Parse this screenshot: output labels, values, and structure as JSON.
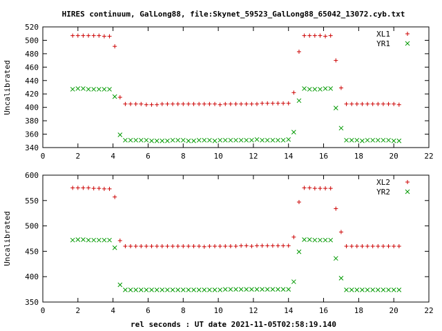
{
  "chart_data": [
    {
      "type": "scatter",
      "title": "HIRES continuum, GalLong88, file:Skynet_59523_GalLong88_65042_13072.cyb.txt",
      "ylabel": "Uncalibrated",
      "xlabel": "",
      "xlim": [
        0,
        22
      ],
      "ylim": [
        340,
        520
      ],
      "xticks": [
        0,
        2,
        4,
        6,
        8,
        10,
        12,
        14,
        16,
        18,
        20,
        22
      ],
      "yticks": [
        340,
        360,
        380,
        400,
        420,
        440,
        460,
        480,
        500,
        520
      ],
      "legend": "top-right",
      "grid": false,
      "series": [
        {
          "name": "XL1",
          "marker": "plus",
          "color": "#cc0000",
          "x": [
            1.7,
            2.0,
            2.3,
            2.6,
            2.9,
            3.2,
            3.5,
            3.8,
            4.1,
            4.4,
            4.7,
            5.0,
            5.3,
            5.6,
            5.9,
            6.2,
            6.5,
            6.8,
            7.1,
            7.4,
            7.7,
            8.0,
            8.3,
            8.6,
            8.9,
            9.2,
            9.5,
            9.8,
            10.1,
            10.4,
            10.7,
            11.0,
            11.3,
            11.6,
            11.9,
            12.2,
            12.5,
            12.8,
            13.1,
            13.4,
            13.7,
            14.0,
            14.3,
            14.6,
            14.9,
            15.2,
            15.5,
            15.8,
            16.1,
            16.4,
            16.7,
            17.0,
            17.3,
            17.6,
            17.9,
            18.2,
            18.5,
            18.8,
            19.1,
            19.4,
            19.7,
            20.0,
            20.3
          ],
          "y": [
            507,
            507,
            507,
            507,
            507,
            507,
            506,
            506,
            491,
            415,
            405,
            405,
            405,
            405,
            404,
            404,
            404,
            405,
            405,
            405,
            405,
            405,
            405,
            405,
            405,
            405,
            405,
            405,
            404,
            405,
            405,
            405,
            405,
            405,
            405,
            405,
            406,
            406,
            406,
            406,
            406,
            406,
            422,
            483,
            507,
            507,
            507,
            507,
            506,
            507,
            470,
            429,
            405,
            405,
            405,
            405,
            405,
            405,
            405,
            405,
            405,
            405,
            404
          ]
        },
        {
          "name": "YR1",
          "marker": "cross",
          "color": "#009900",
          "x": [
            1.7,
            2.0,
            2.3,
            2.6,
            2.9,
            3.2,
            3.5,
            3.8,
            4.1,
            4.4,
            4.7,
            5.0,
            5.3,
            5.6,
            5.9,
            6.2,
            6.5,
            6.8,
            7.1,
            7.4,
            7.7,
            8.0,
            8.3,
            8.6,
            8.9,
            9.2,
            9.5,
            9.8,
            10.1,
            10.4,
            10.7,
            11.0,
            11.3,
            11.6,
            11.9,
            12.2,
            12.5,
            12.8,
            13.1,
            13.4,
            13.7,
            14.0,
            14.3,
            14.6,
            14.9,
            15.2,
            15.5,
            15.8,
            16.1,
            16.4,
            16.7,
            17.0,
            17.3,
            17.6,
            17.9,
            18.2,
            18.5,
            18.8,
            19.1,
            19.4,
            19.7,
            20.0,
            20.3
          ],
          "y": [
            427,
            428,
            428,
            427,
            427,
            427,
            427,
            427,
            416,
            359,
            351,
            351,
            351,
            351,
            351,
            350,
            350,
            350,
            350,
            351,
            351,
            351,
            350,
            350,
            351,
            351,
            351,
            350,
            351,
            351,
            351,
            351,
            351,
            351,
            351,
            352,
            351,
            351,
            351,
            351,
            351,
            352,
            363,
            410,
            428,
            427,
            427,
            427,
            428,
            428,
            399,
            369,
            351,
            351,
            351,
            350,
            351,
            351,
            351,
            351,
            351,
            350,
            350
          ]
        }
      ]
    },
    {
      "type": "scatter",
      "title": "",
      "ylabel": "Uncalibrated",
      "xlabel": "rel seconds : UT date 2021-11-05T02:58:19.140",
      "xlim": [
        0,
        22
      ],
      "ylim": [
        350,
        600
      ],
      "xticks": [
        0,
        2,
        4,
        6,
        8,
        10,
        12,
        14,
        16,
        18,
        20,
        22
      ],
      "yticks": [
        350,
        400,
        450,
        500,
        550,
        600
      ],
      "legend": "top-right",
      "grid": false,
      "series": [
        {
          "name": "XL2",
          "marker": "plus",
          "color": "#cc0000",
          "x": [
            1.7,
            2.0,
            2.3,
            2.6,
            2.9,
            3.2,
            3.5,
            3.8,
            4.1,
            4.4,
            4.7,
            5.0,
            5.3,
            5.6,
            5.9,
            6.2,
            6.5,
            6.8,
            7.1,
            7.4,
            7.7,
            8.0,
            8.3,
            8.6,
            8.9,
            9.2,
            9.5,
            9.8,
            10.1,
            10.4,
            10.7,
            11.0,
            11.3,
            11.6,
            11.9,
            12.2,
            12.5,
            12.8,
            13.1,
            13.4,
            13.7,
            14.0,
            14.3,
            14.6,
            14.9,
            15.2,
            15.5,
            15.8,
            16.1,
            16.4,
            16.7,
            17.0,
            17.3,
            17.6,
            17.9,
            18.2,
            18.5,
            18.8,
            19.1,
            19.4,
            19.7,
            20.0,
            20.3
          ],
          "y": [
            575,
            575,
            575,
            575,
            574,
            574,
            573,
            573,
            557,
            471,
            460,
            460,
            460,
            460,
            460,
            460,
            460,
            460,
            460,
            460,
            460,
            460,
            460,
            460,
            460,
            459,
            460,
            460,
            460,
            460,
            460,
            460,
            461,
            461,
            460,
            461,
            461,
            461,
            461,
            461,
            461,
            461,
            478,
            547,
            575,
            575,
            574,
            574,
            574,
            574,
            534,
            488,
            460,
            460,
            460,
            460,
            460,
            460,
            460,
            460,
            460,
            460,
            460
          ]
        },
        {
          "name": "YR2",
          "marker": "cross",
          "color": "#009900",
          "x": [
            1.7,
            2.0,
            2.3,
            2.6,
            2.9,
            3.2,
            3.5,
            3.8,
            4.1,
            4.4,
            4.7,
            5.0,
            5.3,
            5.6,
            5.9,
            6.2,
            6.5,
            6.8,
            7.1,
            7.4,
            7.7,
            8.0,
            8.3,
            8.6,
            8.9,
            9.2,
            9.5,
            9.8,
            10.1,
            10.4,
            10.7,
            11.0,
            11.3,
            11.6,
            11.9,
            12.2,
            12.5,
            12.8,
            13.1,
            13.4,
            13.7,
            14.0,
            14.3,
            14.6,
            14.9,
            15.2,
            15.5,
            15.8,
            16.1,
            16.4,
            16.7,
            17.0,
            17.3,
            17.6,
            17.9,
            18.2,
            18.5,
            18.8,
            19.1,
            19.4,
            19.7,
            20.0,
            20.3
          ],
          "y": [
            472,
            473,
            473,
            472,
            472,
            472,
            472,
            472,
            457,
            384,
            374,
            374,
            374,
            374,
            374,
            374,
            374,
            374,
            374,
            374,
            374,
            374,
            374,
            374,
            374,
            374,
            374,
            374,
            374,
            375,
            375,
            375,
            375,
            375,
            375,
            375,
            375,
            375,
            375,
            375,
            375,
            375,
            390,
            449,
            473,
            473,
            472,
            472,
            472,
            472,
            436,
            397,
            374,
            374,
            374,
            374,
            374,
            374,
            374,
            374,
            374,
            374,
            374
          ]
        }
      ]
    }
  ]
}
